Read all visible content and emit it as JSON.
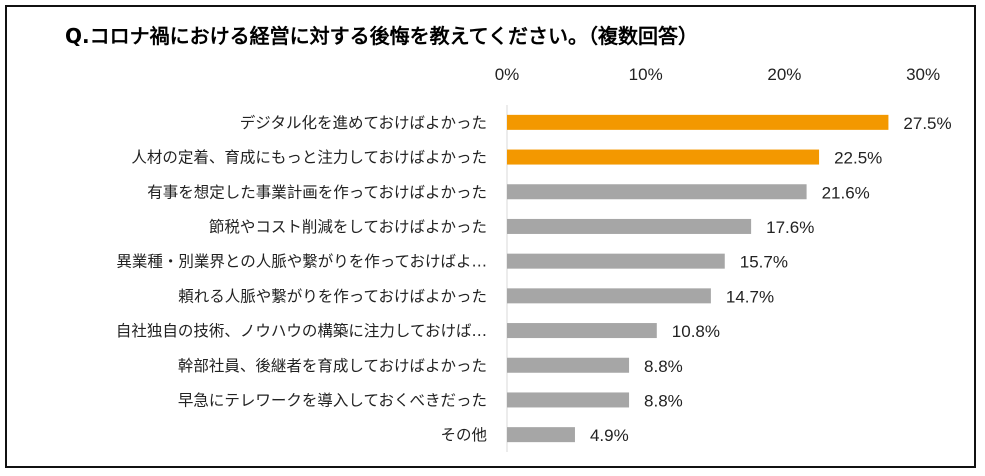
{
  "chart_data": {
    "type": "bar",
    "orientation": "horizontal",
    "title": "Q.コロナ禍における経営に対する後悔を教えてください。（複数回答）",
    "xlim": [
      0,
      30
    ],
    "ticks": [
      0,
      10,
      20,
      30
    ],
    "tick_labels": [
      "0%",
      "10%",
      "20%",
      "30%"
    ],
    "categories": [
      "デジタル化を進めておけばよかった",
      "人材の定着、育成にもっと注力しておけばよかった",
      "有事を想定した事業計画を作っておけばよかった",
      "節税やコスト削減をしておけばよかった",
      "異業種・別業界との人脈や繋がりを作っておけばよ…",
      "頼れる人脈や繋がりを作っておけばよかった",
      "自社独自の技術、ノウハウの構築に注力しておけば…",
      "幹部社員、後継者を育成しておけばよかった",
      "早急にテレワークを導入しておくべきだった",
      "その他"
    ],
    "values": [
      27.5,
      22.5,
      21.6,
      17.6,
      15.7,
      14.7,
      10.8,
      8.8,
      8.8,
      4.9
    ],
    "value_labels": [
      "27.5%",
      "22.5%",
      "21.6%",
      "17.6%",
      "15.7%",
      "14.7%",
      "10.8%",
      "8.8%",
      "8.8%",
      "4.9%"
    ],
    "highlight_count": 2,
    "colors": {
      "highlight": "#F39800",
      "default": "#A6A6A6",
      "axis": "#D9D9D9"
    },
    "grid": false,
    "legend": "none"
  }
}
